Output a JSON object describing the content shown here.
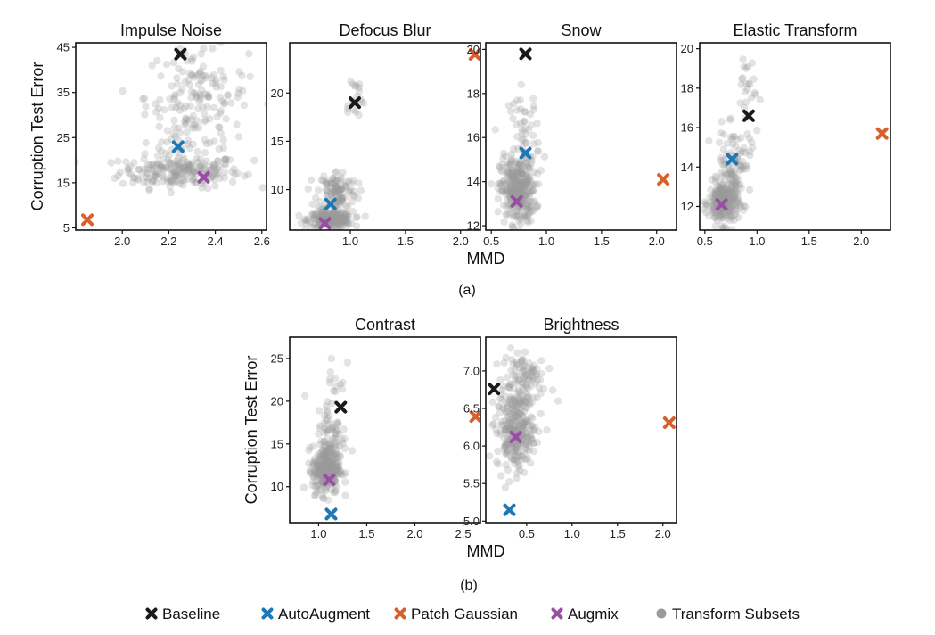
{
  "colors": {
    "baseline": "#1a1a1a",
    "autoaugment": "#1f78b4",
    "patch_gaussian": "#d95f2b",
    "augmix": "#984ea3",
    "transform_subsets": "#9a9a9a"
  },
  "captions": [
    "(a)",
    "(b)"
  ],
  "legend": [
    {
      "key": "baseline",
      "label": "Baseline",
      "marker": "cross"
    },
    {
      "key": "autoaugment",
      "label": "AutoAugment",
      "marker": "cross"
    },
    {
      "key": "patch_gaussian",
      "label": "Patch Gaussian",
      "marker": "cross"
    },
    {
      "key": "augmix",
      "label": "Augmix",
      "marker": "cross"
    },
    {
      "key": "transform_subsets",
      "label": "Transform Subsets",
      "marker": "dot"
    }
  ],
  "chart_data": [
    {
      "type": "scatter",
      "title": "Impulse Noise",
      "xlabel": "",
      "ylabel": "Corruption Test Error",
      "xlim": [
        1.8,
        2.62
      ],
      "ylim": [
        4.5,
        46
      ],
      "xticks": [
        2.0,
        2.2,
        2.4,
        2.6
      ],
      "xtick_labels": [
        "2.0",
        "2.2",
        "2.4",
        "2.6"
      ],
      "yticks": [
        5,
        15,
        25,
        35,
        45
      ],
      "ytick_labels": [
        "5",
        "15",
        "25",
        "35",
        "45"
      ],
      "highlights": {
        "baseline": [
          2.25,
          43.5
        ],
        "autoaugment": [
          2.24,
          23
        ],
        "patch_gaussian": [
          1.85,
          6.8
        ],
        "augmix": [
          2.35,
          16.2
        ]
      },
      "cloud": [
        {
          "cx": 2.25,
          "cy": 17.5,
          "sx": 0.13,
          "sy": 1.8,
          "n": 210
        },
        {
          "cx": 2.32,
          "cy": 34,
          "sx": 0.11,
          "sy": 5.5,
          "n": 150
        },
        {
          "cx": 2.3,
          "cy": 24,
          "sx": 0.12,
          "sy": 2.5,
          "n": 25
        }
      ]
    },
    {
      "type": "scatter",
      "title": "Defocus Blur",
      "xlabel": "",
      "ylabel": "",
      "xlim": [
        0.45,
        2.18
      ],
      "ylim": [
        5.8,
        25.2
      ],
      "xticks": [
        1.0,
        1.5,
        2.0
      ],
      "xtick_labels": [
        "1.0",
        "1.5",
        "2.0"
      ],
      "yticks": [
        10,
        15,
        20
      ],
      "ytick_labels": [
        "10",
        "15",
        "20"
      ],
      "highlights": {
        "baseline": [
          1.04,
          19
        ],
        "autoaugment": [
          0.82,
          8.5
        ],
        "patch_gaussian": [
          2.13,
          24
        ],
        "augmix": [
          0.77,
          6.5
        ]
      },
      "cloud": [
        {
          "cx": 0.82,
          "cy": 6.9,
          "sx": 0.1,
          "sy": 0.4,
          "n": 220
        },
        {
          "cx": 0.88,
          "cy": 9.8,
          "sx": 0.09,
          "sy": 1.1,
          "n": 120
        },
        {
          "cx": 1.03,
          "cy": 19.5,
          "sx": 0.05,
          "sy": 1.3,
          "n": 18
        }
      ]
    },
    {
      "type": "scatter",
      "title": "Snow",
      "xlabel": "MMD",
      "ylabel": "",
      "xlim": [
        0.45,
        2.18
      ],
      "ylim": [
        11.8,
        20.3
      ],
      "xticks": [
        0.5,
        1.0,
        1.5,
        2.0
      ],
      "xtick_labels": [
        "0.5",
        "1.0",
        "1.5",
        "2.0"
      ],
      "yticks": [
        12,
        14,
        16,
        18,
        20
      ],
      "ytick_labels": [
        "12",
        "14",
        "16",
        "18",
        "20"
      ],
      "highlights": {
        "baseline": [
          0.81,
          19.8
        ],
        "autoaugment": [
          0.81,
          15.3
        ],
        "patch_gaussian": [
          2.06,
          14.1
        ],
        "augmix": [
          0.73,
          13.1
        ]
      },
      "cloud": [
        {
          "cx": 0.74,
          "cy": 13.6,
          "sx": 0.08,
          "sy": 0.75,
          "n": 320
        },
        {
          "cx": 0.8,
          "cy": 16.2,
          "sx": 0.07,
          "sy": 1.0,
          "n": 50
        }
      ]
    },
    {
      "type": "scatter",
      "title": "Elastic Transform",
      "xlabel": "",
      "ylabel": "",
      "xlim": [
        0.45,
        2.28
      ],
      "ylim": [
        10.8,
        20.3
      ],
      "xticks": [
        0.5,
        1.0,
        1.5,
        2.0
      ],
      "xtick_labels": [
        "0.5",
        "1.0",
        "1.5",
        "2.0"
      ],
      "yticks": [
        12,
        14,
        16,
        18,
        20
      ],
      "ytick_labels": [
        "12",
        "14",
        "16",
        "18",
        "20"
      ],
      "highlights": {
        "baseline": [
          0.92,
          16.6
        ],
        "autoaugment": [
          0.76,
          14.4
        ],
        "patch_gaussian": [
          2.2,
          15.7
        ],
        "augmix": [
          0.66,
          12.1
        ]
      },
      "cloud": [
        {
          "cx": 0.68,
          "cy": 12.2,
          "sx": 0.07,
          "sy": 0.55,
          "n": 260
        },
        {
          "cx": 0.78,
          "cy": 14.3,
          "sx": 0.08,
          "sy": 0.8,
          "n": 90
        },
        {
          "cx": 0.9,
          "cy": 18.0,
          "sx": 0.06,
          "sy": 1.0,
          "n": 25
        }
      ]
    },
    {
      "type": "scatter",
      "title": "Contrast",
      "xlabel": "MMD",
      "ylabel": "Corruption Test Error",
      "xlim": [
        0.7,
        2.68
      ],
      "ylim": [
        5.8,
        27.5
      ],
      "xticks": [
        1.0,
        1.5,
        2.0,
        2.5
      ],
      "xtick_labels": [
        "1.0",
        "1.5",
        "2.0",
        "2.5"
      ],
      "yticks": [
        10,
        15,
        20,
        25
      ],
      "ytick_labels": [
        "10",
        "15",
        "20",
        "25"
      ],
      "highlights": {
        "baseline": [
          1.23,
          19.3
        ],
        "autoaugment": [
          1.13,
          6.8
        ],
        "patch_gaussian": [
          2.63,
          18.2
        ],
        "augmix": [
          1.11,
          10.8
        ]
      },
      "cloud": [
        {
          "cx": 1.08,
          "cy": 12.0,
          "sx": 0.07,
          "sy": 1.4,
          "n": 300
        },
        {
          "cx": 1.13,
          "cy": 16.0,
          "sx": 0.08,
          "sy": 2.2,
          "n": 70
        },
        {
          "cx": 1.18,
          "cy": 22.5,
          "sx": 0.05,
          "sy": 2.0,
          "n": 12
        }
      ]
    },
    {
      "type": "scatter",
      "title": "Brightness",
      "xlabel": "",
      "ylabel": "",
      "xlim": [
        0.05,
        2.15
      ],
      "ylim": [
        4.98,
        7.45
      ],
      "xticks": [
        0.5,
        1.0,
        1.5,
        2.0
      ],
      "xtick_labels": [
        "0.5",
        "1.0",
        "1.5",
        "2.0"
      ],
      "yticks": [
        5.0,
        5.5,
        6.0,
        6.5,
        7.0
      ],
      "ytick_labels": [
        "5.0",
        "5.5",
        "6.0",
        "6.5",
        "7.0"
      ],
      "highlights": {
        "baseline": [
          0.14,
          6.76
        ],
        "autoaugment": [
          0.31,
          5.15
        ],
        "patch_gaussian": [
          2.07,
          6.31
        ],
        "augmix": [
          0.38,
          6.12
        ]
      },
      "cloud": [
        {
          "cx": 0.37,
          "cy": 6.2,
          "sx": 0.1,
          "sy": 0.25,
          "n": 260
        },
        {
          "cx": 0.45,
          "cy": 6.85,
          "sx": 0.12,
          "sy": 0.25,
          "n": 110
        }
      ]
    }
  ]
}
